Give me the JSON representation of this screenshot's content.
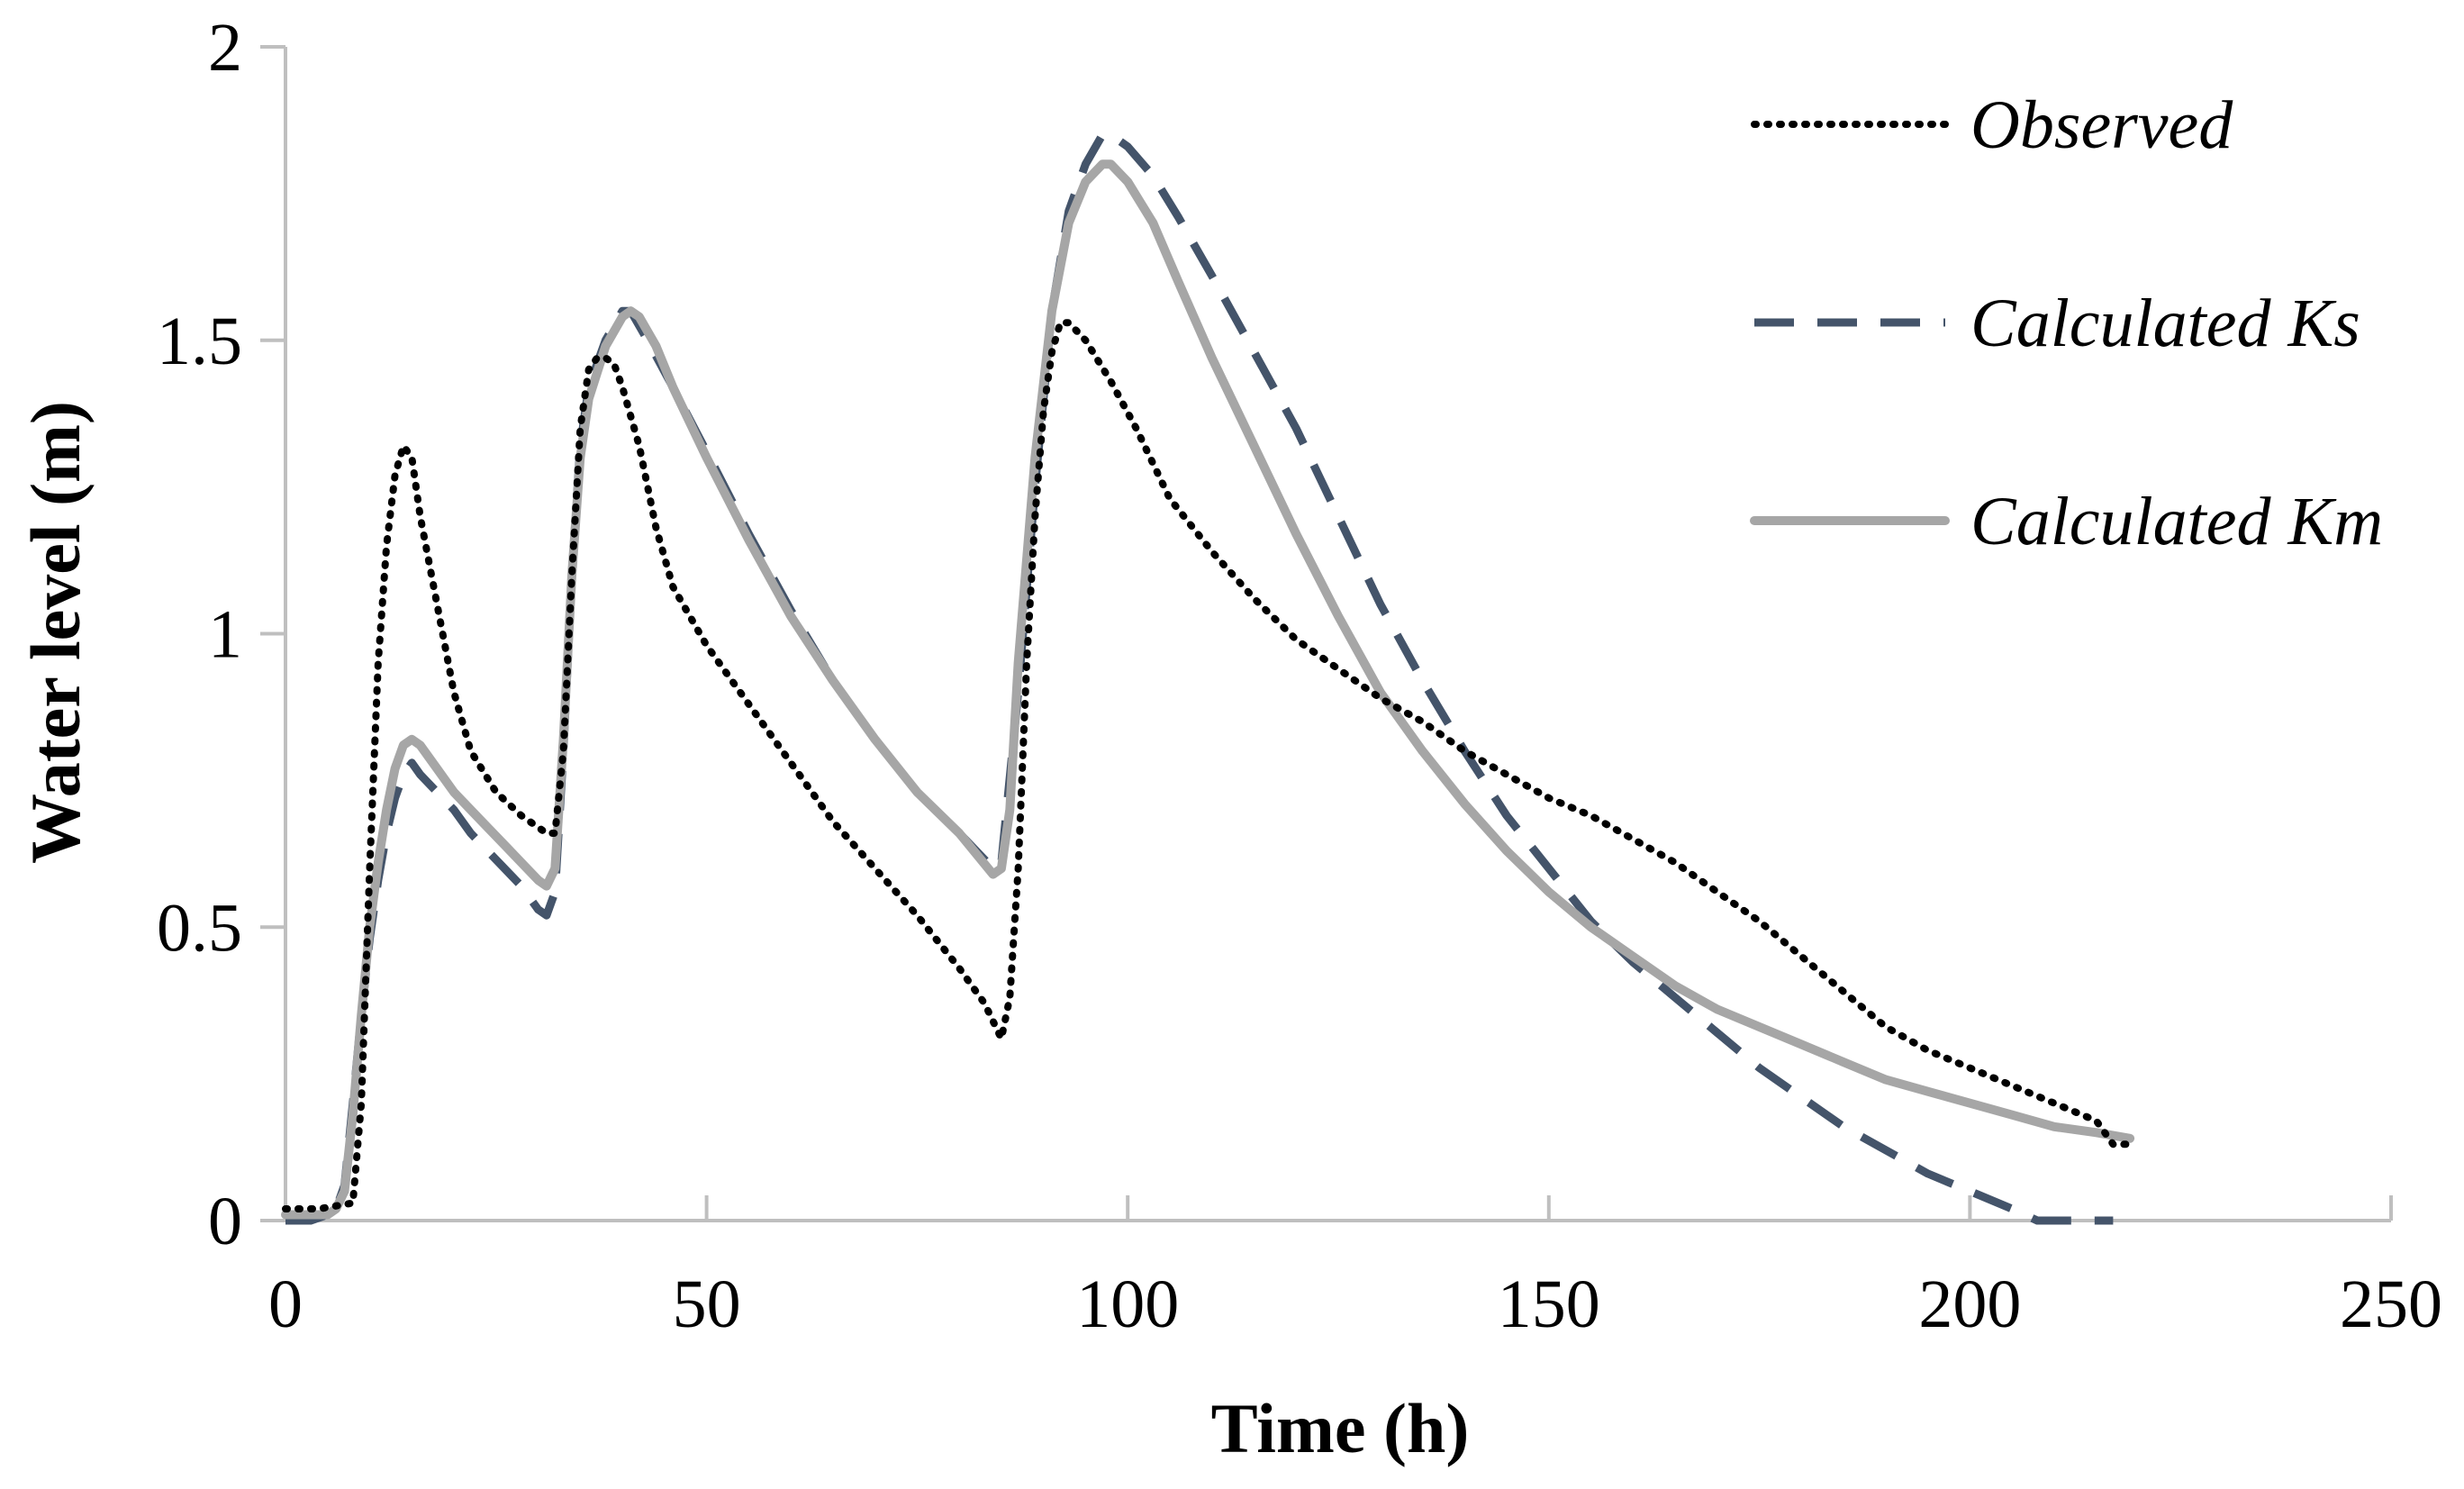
{
  "chart_data": {
    "type": "line",
    "title": "",
    "xlabel": "Time (h)",
    "ylabel": "Water level (m)",
    "xlim": [
      0,
      250
    ],
    "ylim": [
      0,
      2
    ],
    "x_ticks": [
      0,
      50,
      100,
      150,
      200,
      250
    ],
    "x_tick_labels": [
      "0",
      "50",
      "100",
      "150",
      "200",
      "250"
    ],
    "y_ticks": [
      0,
      0.5,
      1,
      1.5,
      2
    ],
    "y_tick_labels": [
      "0",
      "0.5",
      "1",
      "1.5",
      "2"
    ],
    "grid": false,
    "legend_position": "top-right",
    "series": [
      {
        "name": "Observed",
        "style": "dotted",
        "color": "#000000",
        "points": [
          [
            0,
            0.02
          ],
          [
            4,
            0.02
          ],
          [
            8,
            0.03
          ],
          [
            9,
            0.2
          ],
          [
            10,
            0.6
          ],
          [
            11,
            0.95
          ],
          [
            12,
            1.15
          ],
          [
            13,
            1.27
          ],
          [
            14,
            1.32
          ],
          [
            15,
            1.3
          ],
          [
            16,
            1.2
          ],
          [
            18,
            1.05
          ],
          [
            20,
            0.9
          ],
          [
            22,
            0.8
          ],
          [
            25,
            0.73
          ],
          [
            28,
            0.69
          ],
          [
            30,
            0.67
          ],
          [
            31,
            0.66
          ],
          [
            32,
            0.66
          ],
          [
            33,
            0.8
          ],
          [
            34,
            1.1
          ],
          [
            35,
            1.35
          ],
          [
            36,
            1.45
          ],
          [
            37,
            1.47
          ],
          [
            38,
            1.47
          ],
          [
            39,
            1.46
          ],
          [
            40,
            1.42
          ],
          [
            42,
            1.32
          ],
          [
            44,
            1.18
          ],
          [
            46,
            1.08
          ],
          [
            50,
            0.98
          ],
          [
            55,
            0.88
          ],
          [
            60,
            0.78
          ],
          [
            65,
            0.68
          ],
          [
            70,
            0.6
          ],
          [
            75,
            0.52
          ],
          [
            80,
            0.43
          ],
          [
            83,
            0.37
          ],
          [
            85,
            0.31
          ],
          [
            86,
            0.38
          ],
          [
            87,
            0.6
          ],
          [
            88,
            0.95
          ],
          [
            89,
            1.2
          ],
          [
            90,
            1.38
          ],
          [
            91,
            1.48
          ],
          [
            92,
            1.53
          ],
          [
            93,
            1.53
          ],
          [
            95,
            1.5
          ],
          [
            98,
            1.43
          ],
          [
            101,
            1.35
          ],
          [
            105,
            1.23
          ],
          [
            110,
            1.14
          ],
          [
            115,
            1.06
          ],
          [
            120,
            0.99
          ],
          [
            125,
            0.94
          ],
          [
            130,
            0.89
          ],
          [
            135,
            0.85
          ],
          [
            140,
            0.8
          ],
          [
            145,
            0.76
          ],
          [
            150,
            0.72
          ],
          [
            155,
            0.69
          ],
          [
            160,
            0.65
          ],
          [
            165,
            0.61
          ],
          [
            170,
            0.56
          ],
          [
            175,
            0.51
          ],
          [
            180,
            0.45
          ],
          [
            185,
            0.39
          ],
          [
            190,
            0.33
          ],
          [
            195,
            0.29
          ],
          [
            200,
            0.26
          ],
          [
            205,
            0.23
          ],
          [
            210,
            0.2
          ],
          [
            215,
            0.17
          ],
          [
            217,
            0.13
          ],
          [
            219,
            0.13
          ]
        ]
      },
      {
        "name": "Calculated Ks",
        "style": "dashed",
        "color": "#44546A",
        "points": [
          [
            0,
            0.0
          ],
          [
            3,
            0.0
          ],
          [
            5,
            0.01
          ],
          [
            6,
            0.02
          ],
          [
            7,
            0.06
          ],
          [
            8,
            0.2
          ],
          [
            9,
            0.35
          ],
          [
            10,
            0.48
          ],
          [
            11,
            0.58
          ],
          [
            12,
            0.66
          ],
          [
            13,
            0.72
          ],
          [
            14,
            0.76
          ],
          [
            15,
            0.78
          ],
          [
            16,
            0.76
          ],
          [
            18,
            0.73
          ],
          [
            20,
            0.7
          ],
          [
            22,
            0.66
          ],
          [
            24,
            0.63
          ],
          [
            26,
            0.6
          ],
          [
            28,
            0.57
          ],
          [
            29,
            0.55
          ],
          [
            30,
            0.53
          ],
          [
            31,
            0.52
          ],
          [
            32,
            0.56
          ],
          [
            33,
            0.8
          ],
          [
            34,
            1.1
          ],
          [
            35,
            1.32
          ],
          [
            36,
            1.42
          ],
          [
            38,
            1.5
          ],
          [
            40,
            1.55
          ],
          [
            41,
            1.55
          ],
          [
            43,
            1.5
          ],
          [
            46,
            1.42
          ],
          [
            50,
            1.31
          ],
          [
            55,
            1.17
          ],
          [
            60,
            1.04
          ],
          [
            65,
            0.92
          ],
          [
            70,
            0.82
          ],
          [
            75,
            0.73
          ],
          [
            80,
            0.66
          ],
          [
            84,
            0.6
          ],
          [
            85,
            0.61
          ],
          [
            87,
            0.9
          ],
          [
            89,
            1.25
          ],
          [
            91,
            1.55
          ],
          [
            93,
            1.72
          ],
          [
            95,
            1.8
          ],
          [
            97,
            1.85
          ],
          [
            98,
            1.85
          ],
          [
            100,
            1.83
          ],
          [
            103,
            1.78
          ],
          [
            106,
            1.71
          ],
          [
            110,
            1.61
          ],
          [
            115,
            1.48
          ],
          [
            120,
            1.35
          ],
          [
            125,
            1.2
          ],
          [
            130,
            1.05
          ],
          [
            135,
            0.92
          ],
          [
            140,
            0.8
          ],
          [
            145,
            0.69
          ],
          [
            150,
            0.6
          ],
          [
            155,
            0.51
          ],
          [
            160,
            0.44
          ],
          [
            165,
            0.38
          ],
          [
            170,
            0.32
          ],
          [
            175,
            0.26
          ],
          [
            180,
            0.21
          ],
          [
            185,
            0.16
          ],
          [
            190,
            0.12
          ],
          [
            195,
            0.08
          ],
          [
            200,
            0.05
          ],
          [
            205,
            0.02
          ],
          [
            208,
            0.0
          ],
          [
            210,
            0.0
          ],
          [
            212,
            0.0
          ],
          [
            215,
            0.0
          ],
          [
            217,
            0.0
          ]
        ]
      },
      {
        "name": "Calculated Km",
        "style": "solid",
        "color": "#A6A6A6",
        "points": [
          [
            0,
            0.01
          ],
          [
            3,
            0.01
          ],
          [
            5,
            0.01
          ],
          [
            6,
            0.02
          ],
          [
            7,
            0.05
          ],
          [
            8,
            0.18
          ],
          [
            9,
            0.35
          ],
          [
            10,
            0.5
          ],
          [
            11,
            0.61
          ],
          [
            12,
            0.7
          ],
          [
            13,
            0.77
          ],
          [
            14,
            0.81
          ],
          [
            15,
            0.82
          ],
          [
            16,
            0.81
          ],
          [
            18,
            0.77
          ],
          [
            20,
            0.73
          ],
          [
            22,
            0.7
          ],
          [
            24,
            0.67
          ],
          [
            26,
            0.64
          ],
          [
            28,
            0.61
          ],
          [
            30,
            0.58
          ],
          [
            31,
            0.57
          ],
          [
            32,
            0.6
          ],
          [
            33,
            0.82
          ],
          [
            34,
            1.1
          ],
          [
            35,
            1.3
          ],
          [
            36,
            1.4
          ],
          [
            38,
            1.49
          ],
          [
            40,
            1.54
          ],
          [
            41,
            1.55
          ],
          [
            42,
            1.54
          ],
          [
            44,
            1.49
          ],
          [
            46,
            1.42
          ],
          [
            50,
            1.3
          ],
          [
            55,
            1.16
          ],
          [
            60,
            1.03
          ],
          [
            65,
            0.92
          ],
          [
            70,
            0.82
          ],
          [
            75,
            0.73
          ],
          [
            80,
            0.66
          ],
          [
            84,
            0.59
          ],
          [
            85,
            0.6
          ],
          [
            86,
            0.7
          ],
          [
            87,
            0.95
          ],
          [
            89,
            1.3
          ],
          [
            91,
            1.55
          ],
          [
            93,
            1.7
          ],
          [
            95,
            1.77
          ],
          [
            97,
            1.8
          ],
          [
            98,
            1.8
          ],
          [
            100,
            1.77
          ],
          [
            103,
            1.7
          ],
          [
            106,
            1.6
          ],
          [
            110,
            1.47
          ],
          [
            115,
            1.32
          ],
          [
            120,
            1.17
          ],
          [
            125,
            1.03
          ],
          [
            130,
            0.9
          ],
          [
            135,
            0.8
          ],
          [
            140,
            0.71
          ],
          [
            145,
            0.63
          ],
          [
            150,
            0.56
          ],
          [
            155,
            0.5
          ],
          [
            160,
            0.45
          ],
          [
            165,
            0.4
          ],
          [
            170,
            0.36
          ],
          [
            175,
            0.33
          ],
          [
            180,
            0.3
          ],
          [
            185,
            0.27
          ],
          [
            190,
            0.24
          ],
          [
            195,
            0.22
          ],
          [
            200,
            0.2
          ],
          [
            205,
            0.18
          ],
          [
            210,
            0.16
          ],
          [
            215,
            0.15
          ],
          [
            219,
            0.14
          ]
        ]
      }
    ]
  }
}
